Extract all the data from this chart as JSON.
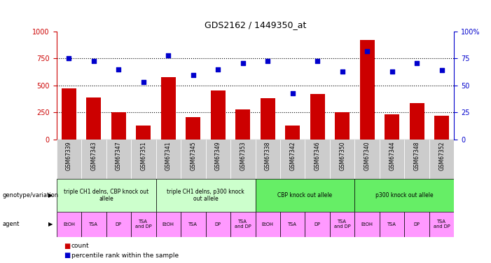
{
  "title": "GDS2162 / 1449350_at",
  "samples": [
    "GSM67339",
    "GSM67343",
    "GSM67347",
    "GSM67351",
    "GSM67341",
    "GSM67345",
    "GSM67349",
    "GSM67353",
    "GSM67338",
    "GSM67342",
    "GSM67346",
    "GSM67350",
    "GSM67340",
    "GSM67344",
    "GSM67348",
    "GSM67352"
  ],
  "counts": [
    470,
    390,
    250,
    130,
    575,
    205,
    455,
    280,
    380,
    130,
    420,
    255,
    920,
    235,
    335,
    220
  ],
  "percentiles": [
    75,
    73,
    65,
    53,
    78,
    60,
    65,
    71,
    73,
    43,
    73,
    63,
    82,
    63,
    71,
    64
  ],
  "bar_color": "#cc0000",
  "dot_color": "#0000cc",
  "ylim_left": [
    0,
    1000
  ],
  "ylim_right": [
    0,
    100
  ],
  "yticks_left": [
    0,
    250,
    500,
    750,
    1000
  ],
  "yticks_right": [
    0,
    25,
    50,
    75,
    100
  ],
  "hlines": [
    250,
    500,
    750
  ],
  "genotype_groups": [
    {
      "label": "triple CH1 delns, CBP knock out\nallele",
      "start": 0,
      "end": 4,
      "color": "#ccffcc"
    },
    {
      "label": "triple CH1 delns, p300 knock\nout allele",
      "start": 4,
      "end": 8,
      "color": "#ccffcc"
    },
    {
      "label": "CBP knock out allele",
      "start": 8,
      "end": 12,
      "color": "#66ee66"
    },
    {
      "label": "p300 knock out allele",
      "start": 12,
      "end": 16,
      "color": "#66ee66"
    }
  ],
  "agents": [
    "EtOH",
    "TSA",
    "DP",
    "TSA\nand DP",
    "EtOH",
    "TSA",
    "DP",
    "TSA\nand DP",
    "EtOH",
    "TSA",
    "DP",
    "TSA\nand DP",
    "EtOH",
    "TSA",
    "DP",
    "TSA\nand DP"
  ],
  "agent_color": "#ff99ff",
  "left_label_genotype": "genotype/variation",
  "left_label_agent": "agent",
  "legend_count_color": "#cc0000",
  "legend_dot_color": "#0000cc",
  "xtick_bg": "#cccccc"
}
